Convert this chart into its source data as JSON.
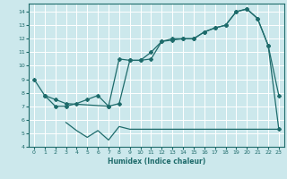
{
  "xlabel": "Humidex (Indice chaleur)",
  "bg_color": "#cce8ec",
  "line_color": "#1e6b6b",
  "grid_color": "#ffffff",
  "xlim": [
    -0.5,
    23.5
  ],
  "ylim": [
    4,
    14.6
  ],
  "xticks": [
    0,
    1,
    2,
    3,
    4,
    5,
    6,
    7,
    8,
    9,
    10,
    11,
    12,
    13,
    14,
    15,
    16,
    17,
    18,
    19,
    20,
    21,
    22,
    23
  ],
  "yticks": [
    4,
    5,
    6,
    7,
    8,
    9,
    10,
    11,
    12,
    13,
    14
  ],
  "s1_x": [
    0,
    1,
    2,
    3,
    4,
    5,
    6,
    7,
    8,
    9,
    10,
    11,
    12,
    13,
    14,
    15,
    16,
    17,
    18,
    19,
    20,
    21,
    22,
    23
  ],
  "s1_y": [
    9.0,
    7.8,
    7.0,
    7.0,
    7.2,
    7.5,
    7.8,
    7.0,
    7.2,
    10.4,
    10.4,
    11.0,
    11.8,
    12.0,
    12.0,
    12.0,
    12.5,
    12.8,
    13.0,
    14.0,
    14.2,
    13.5,
    11.5,
    7.8
  ],
  "s2_x": [
    1,
    2,
    3,
    7,
    8,
    9,
    10,
    11,
    12,
    13,
    14,
    15,
    16,
    17,
    18,
    19,
    20,
    21,
    22,
    23
  ],
  "s2_y": [
    7.8,
    7.5,
    7.2,
    7.0,
    10.5,
    10.4,
    10.4,
    10.5,
    11.8,
    11.9,
    12.0,
    12.0,
    12.5,
    12.8,
    13.0,
    14.0,
    14.2,
    13.5,
    11.5,
    5.3
  ],
  "s3_x": [
    3,
    4,
    5,
    6,
    7,
    8,
    9,
    10,
    11,
    12,
    13,
    14,
    15,
    16,
    17,
    18,
    19,
    20,
    21,
    22,
    23
  ],
  "s3_y": [
    5.8,
    5.2,
    4.7,
    5.2,
    4.5,
    5.5,
    5.3,
    5.3,
    5.3,
    5.3,
    5.3,
    5.3,
    5.3,
    5.3,
    5.3,
    5.3,
    5.3,
    5.3,
    5.3,
    5.3,
    5.3
  ]
}
